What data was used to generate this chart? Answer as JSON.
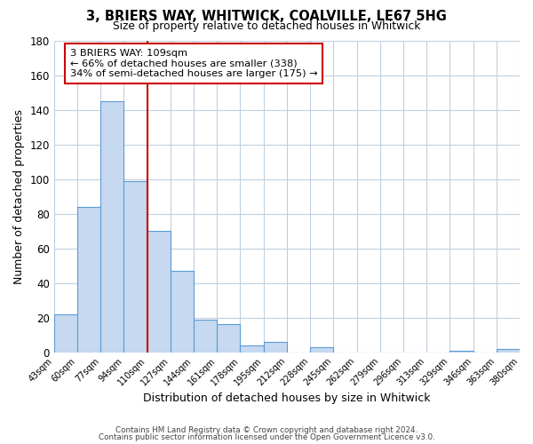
{
  "title": "3, BRIERS WAY, WHITWICK, COALVILLE, LE67 5HG",
  "subtitle": "Size of property relative to detached houses in Whitwick",
  "xlabel": "Distribution of detached houses by size in Whitwick",
  "ylabel": "Number of detached properties",
  "bin_edges": [
    "43sqm",
    "60sqm",
    "77sqm",
    "94sqm",
    "110sqm",
    "127sqm",
    "144sqm",
    "161sqm",
    "178sqm",
    "195sqm",
    "212sqm",
    "228sqm",
    "245sqm",
    "262sqm",
    "279sqm",
    "296sqm",
    "313sqm",
    "329sqm",
    "346sqm",
    "363sqm",
    "380sqm"
  ],
  "bar_heights": [
    22,
    84,
    145,
    99,
    70,
    47,
    19,
    16,
    4,
    6,
    0,
    3,
    0,
    0,
    0,
    0,
    0,
    1,
    0,
    2
  ],
  "bar_color": "#c6d9f0",
  "bar_edge_color": "#5b9bd5",
  "vline_x": 3.5,
  "vline_color": "#cc0000",
  "annotation_text": "3 BRIERS WAY: 109sqm\n← 66% of detached houses are smaller (338)\n34% of semi-detached houses are larger (175) →",
  "annotation_box_color": "#ffffff",
  "annotation_box_edge": "#cc0000",
  "ylim": [
    0,
    180
  ],
  "yticks": [
    0,
    20,
    40,
    60,
    80,
    100,
    120,
    140,
    160,
    180
  ],
  "footer_line1": "Contains HM Land Registry data © Crown copyright and database right 2024.",
  "footer_line2": "Contains public sector information licensed under the Open Government Licence v3.0.",
  "background_color": "#ffffff",
  "grid_color": "#c0d0e0"
}
